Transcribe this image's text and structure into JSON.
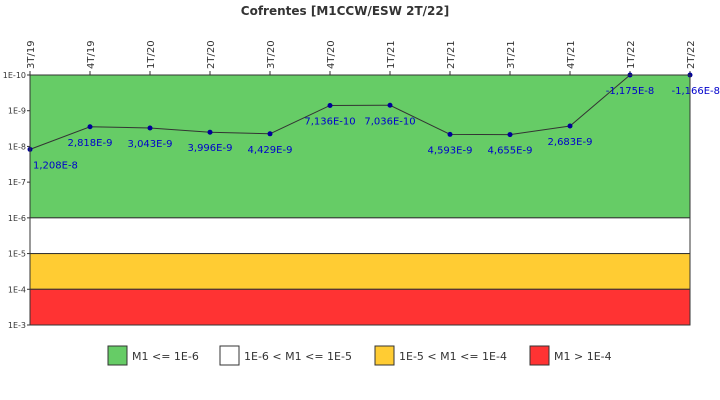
{
  "chart_data": {
    "type": "line",
    "title": "Cofrentes [M1CCW/ESW 2T/22]",
    "xlabel": "",
    "ylabel": "",
    "y_scale": "log",
    "y_axis": "inverted",
    "ylim": [
      1e-10,
      0.001
    ],
    "ytick_labels": [
      "1E-10",
      "1E-9",
      "1E-8",
      "1E-7",
      "1E-6",
      "1E-5",
      "1E-4",
      "1E-3"
    ],
    "categories": [
      "3T/19",
      "4T/19",
      "1T/20",
      "2T/20",
      "3T/20",
      "4T/20",
      "1T/21",
      "2T/21",
      "3T/21",
      "4T/21",
      "1T/22",
      "2T/22"
    ],
    "values": [
      1.208e-08,
      2.818e-09,
      3.043e-09,
      3.996e-09,
      4.429e-09,
      7.136e-10,
      7.036e-10,
      4.593e-09,
      4.655e-09,
      2.683e-09,
      -1.175e-08,
      -1.166e-08
    ],
    "data_labels": [
      "1,208E-8",
      "2,818E-9",
      "3,043E-9",
      "3,996E-9",
      "4,429E-9",
      "7,136E-10",
      "7,036E-10",
      "4,593E-9",
      "4,655E-9",
      "2,683E-9",
      "-1,175E-8",
      "-1,166E-8"
    ],
    "bands": [
      {
        "from": 1e-10,
        "to": 1e-06,
        "color": "#66cc66",
        "label": "M1 <= 1E-6"
      },
      {
        "from": 1e-06,
        "to": 1e-05,
        "color": "#ffffff",
        "label": "1E-6 < M1 <= 1E-5"
      },
      {
        "from": 1e-05,
        "to": 0.0001,
        "color": "#ffcc33",
        "label": "1E-5 < M1 <= 1E-4"
      },
      {
        "from": 0.0001,
        "to": 0.001,
        "color": "#ff3333",
        "label": "M1 > 1E-4"
      }
    ],
    "line_color": "#333333",
    "marker_color": "#000099",
    "label_color": "#0000cc",
    "grid": false,
    "legend_position": "bottom"
  }
}
